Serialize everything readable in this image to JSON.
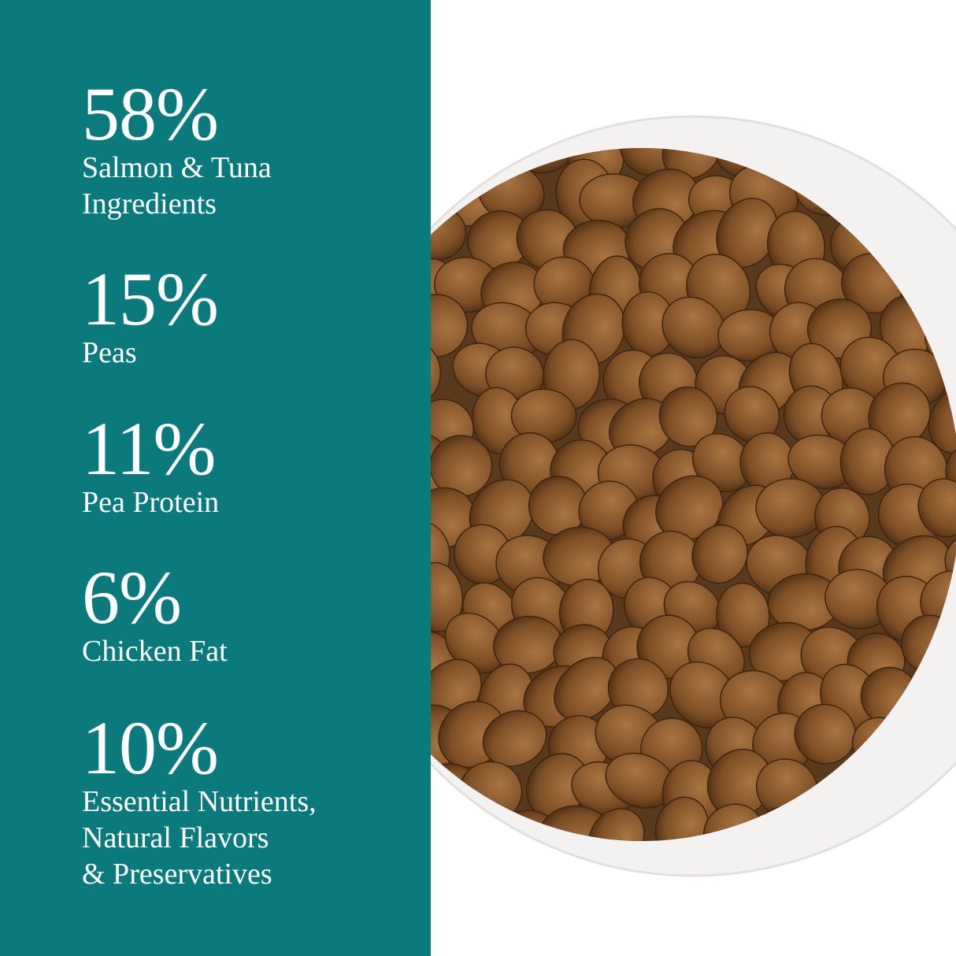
{
  "colors": {
    "panel": "#0b7a7c",
    "text": "#ffffff",
    "bowl": "#f3f1ef",
    "kibble": "#8a5a2c"
  },
  "stats": [
    {
      "percent": "58%",
      "label": "Salmon & Tuna\nIngredients"
    },
    {
      "percent": "15%",
      "label": "Peas"
    },
    {
      "percent": "11%",
      "label": "Pea Protein"
    },
    {
      "percent": "6%",
      "label": "Chicken Fat"
    },
    {
      "percent": "10%",
      "label": "Essential Nutrients,\nNatural Flavors\n& Preservatives"
    }
  ]
}
